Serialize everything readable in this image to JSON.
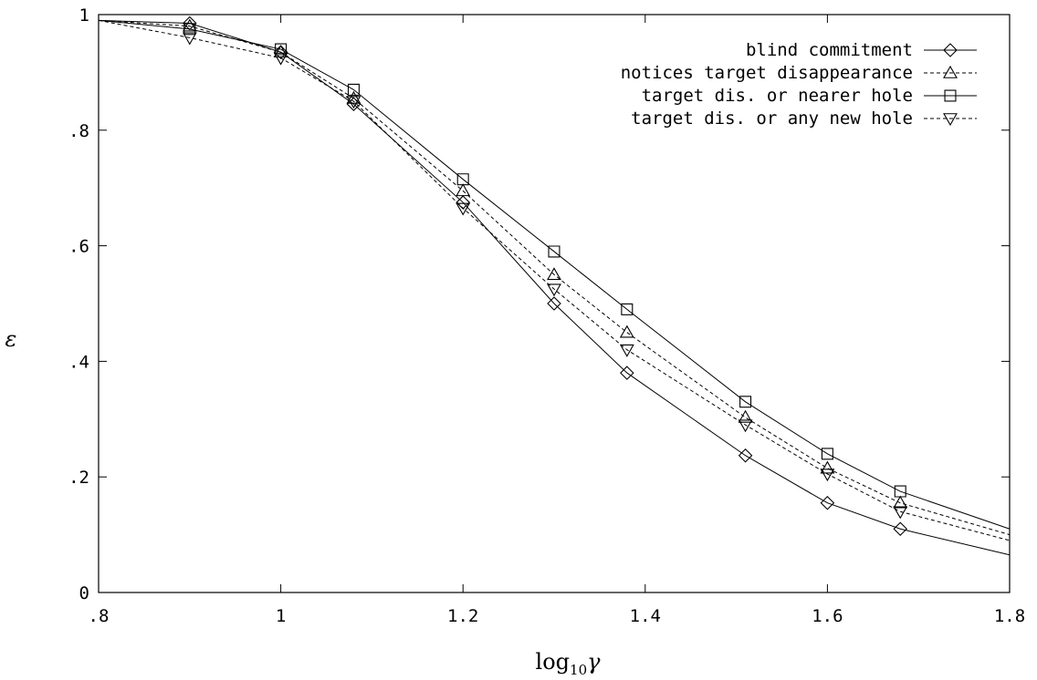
{
  "chart_data": {
    "type": "line",
    "xlabel": "log₁₀γ",
    "xlabel_parts": {
      "base": "log",
      "subscript": "10",
      "symbol": "γ"
    },
    "ylabel": "ε",
    "xlim": [
      0.8,
      1.8
    ],
    "ylim": [
      0,
      1
    ],
    "x_ticks": [
      0.8,
      1.0,
      1.2,
      1.4,
      1.6,
      1.8
    ],
    "x_tick_labels": [
      ".8",
      "1",
      "1.2",
      "1.4",
      "1.6",
      "1.8"
    ],
    "y_ticks": [
      0,
      0.2,
      0.4,
      0.6,
      0.8,
      1.0
    ],
    "y_tick_labels": [
      "0",
      ".2",
      ".4",
      ".6",
      ".8",
      "1"
    ],
    "grid": false,
    "legend_position": "top-right",
    "series": [
      {
        "name": "blind commitment",
        "marker": "diamond",
        "line_style": "solid",
        "x": [
          0.8,
          0.9,
          1.0,
          1.08,
          1.2,
          1.3,
          1.38,
          1.51,
          1.6,
          1.68,
          1.8
        ],
        "y": [
          0.99,
          0.985,
          0.935,
          0.845,
          0.675,
          0.5,
          0.38,
          0.237,
          0.155,
          0.11,
          0.065
        ]
      },
      {
        "name": "notices target disappearance",
        "marker": "triangle-up",
        "line_style": "dashed",
        "x": [
          0.8,
          0.9,
          1.0,
          1.08,
          1.2,
          1.3,
          1.38,
          1.51,
          1.6,
          1.68,
          1.8
        ],
        "y": [
          0.99,
          0.98,
          0.935,
          0.855,
          0.695,
          0.55,
          0.45,
          0.303,
          0.215,
          0.155,
          0.1
        ]
      },
      {
        "name": "target dis. or nearer hole",
        "marker": "square",
        "line_style": "solid",
        "x": [
          0.8,
          0.9,
          1.0,
          1.08,
          1.2,
          1.3,
          1.38,
          1.51,
          1.6,
          1.68,
          1.8
        ],
        "y": [
          0.99,
          0.975,
          0.94,
          0.87,
          0.715,
          0.59,
          0.49,
          0.33,
          0.24,
          0.175,
          0.11
        ]
      },
      {
        "name": "target dis. or any new hole",
        "marker": "triangle-down",
        "line_style": "dashed",
        "x": [
          0.8,
          0.9,
          1.0,
          1.08,
          1.2,
          1.3,
          1.38,
          1.51,
          1.6,
          1.68,
          1.8
        ],
        "y": [
          0.99,
          0.96,
          0.925,
          0.85,
          0.665,
          0.525,
          0.42,
          0.29,
          0.205,
          0.14,
          0.09
        ]
      }
    ]
  }
}
